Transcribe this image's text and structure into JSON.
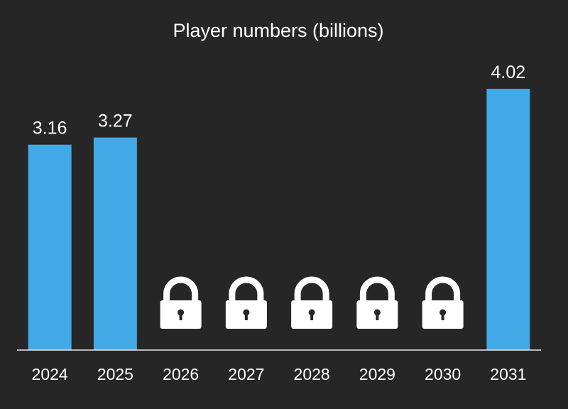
{
  "chart_data": {
    "type": "bar",
    "title": "Player numbers (billions)",
    "xlabel": "",
    "ylabel": "",
    "categories": [
      "2024",
      "2025",
      "2026",
      "2027",
      "2028",
      "2029",
      "2030",
      "2031"
    ],
    "values": [
      3.16,
      3.27,
      null,
      null,
      null,
      null,
      null,
      4.02
    ],
    "data_labels": [
      "3.16",
      "3.27",
      "",
      "",
      "",
      "",
      "",
      "4.02"
    ],
    "locked": [
      false,
      false,
      true,
      true,
      true,
      true,
      true,
      false
    ],
    "locked_icon": "padlock-icon",
    "ylim": [
      0,
      4.02
    ],
    "grid": false,
    "legend": "none",
    "colors": {
      "background": "#262626",
      "bar": "#42a8e6",
      "text": "#ffffff",
      "icon": "#ffffff",
      "baseline": "#e8e8e8"
    }
  }
}
